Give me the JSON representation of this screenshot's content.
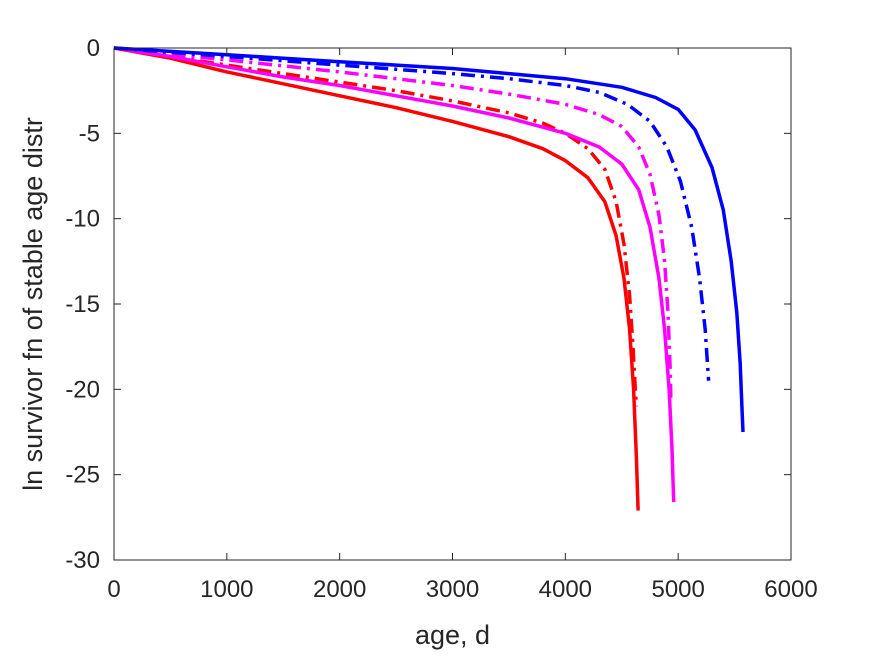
{
  "chart_data": {
    "type": "line",
    "title": "",
    "xlabel": "age, d",
    "ylabel": "ln survivor fn of stable age distr",
    "xlim": [
      0,
      6000
    ],
    "ylim": [
      -30,
      0
    ],
    "xticks": [
      0,
      1000,
      2000,
      3000,
      4000,
      5000,
      6000
    ],
    "yticks": [
      0,
      -5,
      -10,
      -15,
      -20,
      -25,
      -30
    ],
    "xtick_labels": [
      "0",
      "1000",
      "2000",
      "3000",
      "4000",
      "5000",
      "6000"
    ],
    "ytick_labels": [
      "0",
      "-5",
      "-10",
      "-15",
      "-20",
      "-25",
      "-30"
    ],
    "grid": false,
    "box": true,
    "series": [
      {
        "color": "#ff0000",
        "style": "solid",
        "points": [
          [
            0,
            0
          ],
          [
            500,
            -0.6
          ],
          [
            1000,
            -1.4
          ],
          [
            1500,
            -2.1
          ],
          [
            2000,
            -2.8
          ],
          [
            2500,
            -3.5
          ],
          [
            3000,
            -4.3
          ],
          [
            3500,
            -5.2
          ],
          [
            3800,
            -5.9
          ],
          [
            4000,
            -6.6
          ],
          [
            4200,
            -7.6
          ],
          [
            4350,
            -9.0
          ],
          [
            4450,
            -11.0
          ],
          [
            4520,
            -13.5
          ],
          [
            4570,
            -16.5
          ],
          [
            4605,
            -20.0
          ],
          [
            4630,
            -24.0
          ],
          [
            4645,
            -27.1
          ]
        ]
      },
      {
        "color": "#ff0000",
        "style": "dashdot",
        "points": [
          [
            0,
            0
          ],
          [
            500,
            -0.5
          ],
          [
            1000,
            -1.0
          ],
          [
            1500,
            -1.5
          ],
          [
            2000,
            -2.0
          ],
          [
            2500,
            -2.5
          ],
          [
            3000,
            -3.1
          ],
          [
            3500,
            -3.8
          ],
          [
            3800,
            -4.4
          ],
          [
            4000,
            -5.0
          ],
          [
            4200,
            -5.9
          ],
          [
            4350,
            -7.1
          ],
          [
            4450,
            -9.0
          ],
          [
            4520,
            -11.5
          ],
          [
            4570,
            -14.5
          ],
          [
            4600,
            -17.5
          ],
          [
            4620,
            -20.0
          ],
          [
            4630,
            -21.0
          ]
        ]
      },
      {
        "color": "#ff00ff",
        "style": "solid",
        "points": [
          [
            0,
            0
          ],
          [
            500,
            -0.5
          ],
          [
            1000,
            -1.1
          ],
          [
            1500,
            -1.7
          ],
          [
            2000,
            -2.2
          ],
          [
            2500,
            -2.8
          ],
          [
            3000,
            -3.4
          ],
          [
            3500,
            -4.1
          ],
          [
            4000,
            -5.0
          ],
          [
            4300,
            -5.8
          ],
          [
            4500,
            -6.8
          ],
          [
            4650,
            -8.3
          ],
          [
            4750,
            -10.5
          ],
          [
            4830,
            -13.5
          ],
          [
            4880,
            -16.5
          ],
          [
            4920,
            -20.0
          ],
          [
            4945,
            -23.5
          ],
          [
            4960,
            -26.6
          ]
        ]
      },
      {
        "color": "#ff00ff",
        "style": "dashdot",
        "points": [
          [
            0,
            0
          ],
          [
            500,
            -0.35
          ],
          [
            1000,
            -0.7
          ],
          [
            1500,
            -1.05
          ],
          [
            2000,
            -1.4
          ],
          [
            2500,
            -1.8
          ],
          [
            3000,
            -2.2
          ],
          [
            3500,
            -2.7
          ],
          [
            4000,
            -3.3
          ],
          [
            4300,
            -3.9
          ],
          [
            4500,
            -4.6
          ],
          [
            4650,
            -5.8
          ],
          [
            4750,
            -7.4
          ],
          [
            4830,
            -9.8
          ],
          [
            4880,
            -12.5
          ],
          [
            4910,
            -15.5
          ],
          [
            4930,
            -19.0
          ],
          [
            4935,
            -20.5
          ]
        ]
      },
      {
        "color": "#0000ff",
        "style": "solid",
        "points": [
          [
            0,
            0
          ],
          [
            500,
            -0.2
          ],
          [
            1000,
            -0.4
          ],
          [
            1500,
            -0.6
          ],
          [
            2000,
            -0.8
          ],
          [
            2500,
            -1.0
          ],
          [
            3000,
            -1.2
          ],
          [
            3500,
            -1.5
          ],
          [
            4000,
            -1.8
          ],
          [
            4500,
            -2.3
          ],
          [
            4800,
            -2.9
          ],
          [
            5000,
            -3.6
          ],
          [
            5150,
            -4.8
          ],
          [
            5300,
            -7.0
          ],
          [
            5400,
            -9.5
          ],
          [
            5470,
            -12.5
          ],
          [
            5520,
            -15.5
          ],
          [
            5550,
            -18.5
          ],
          [
            5565,
            -21.0
          ],
          [
            5575,
            -22.5
          ]
        ]
      },
      {
        "color": "#0000ff",
        "style": "dashdot",
        "points": [
          [
            0,
            0
          ],
          [
            500,
            -0.25
          ],
          [
            1000,
            -0.5
          ],
          [
            1500,
            -0.75
          ],
          [
            2000,
            -1.0
          ],
          [
            2500,
            -1.25
          ],
          [
            3000,
            -1.5
          ],
          [
            3500,
            -1.8
          ],
          [
            4000,
            -2.2
          ],
          [
            4300,
            -2.6
          ],
          [
            4550,
            -3.3
          ],
          [
            4750,
            -4.3
          ],
          [
            4900,
            -5.8
          ],
          [
            5020,
            -7.8
          ],
          [
            5120,
            -10.5
          ],
          [
            5190,
            -13.5
          ],
          [
            5240,
            -16.5
          ],
          [
            5270,
            -19.5
          ]
        ]
      }
    ]
  }
}
